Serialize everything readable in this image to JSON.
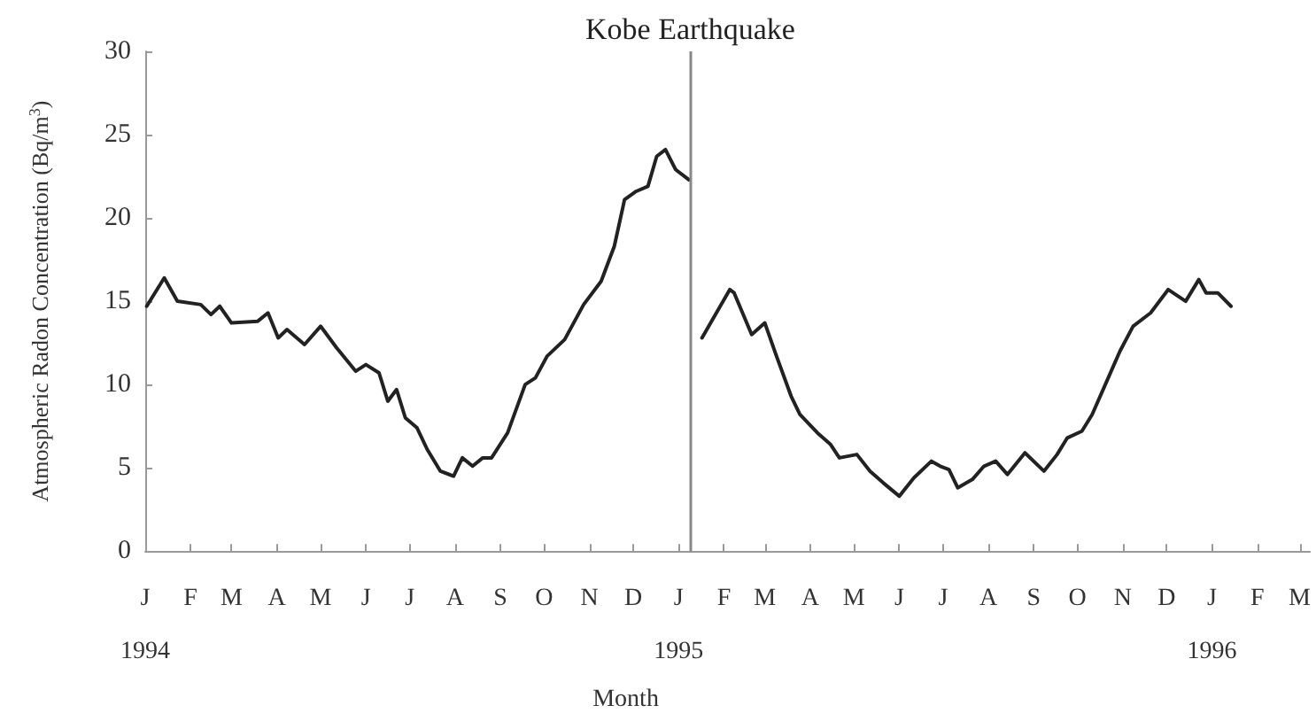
{
  "chart_data": {
    "type": "line",
    "ylabel": "Atmospheric Radon Concentration (Bq/m$^{3}$)",
    "xlabel": "Month",
    "xlim": [
      "1994-01-01",
      "1996-03-08"
    ],
    "xticks": [
      {
        "value": "1994-01-01",
        "label": "J\n1994"
      },
      {
        "value": "1994-02-01",
        "label": "F"
      },
      {
        "value": "1994-03-01",
        "label": "M"
      },
      {
        "value": "1994-04-01",
        "label": "A"
      },
      {
        "value": "1994-05-01",
        "label": "M"
      },
      {
        "value": "1994-06-01",
        "label": "J"
      },
      {
        "value": "1994-07-01",
        "label": "J"
      },
      {
        "value": "1994-08-01",
        "label": "A"
      },
      {
        "value": "1994-09-01",
        "label": "S"
      },
      {
        "value": "1994-10-01",
        "label": "O"
      },
      {
        "value": "1994-11-01",
        "label": "N"
      },
      {
        "value": "1994-12-01",
        "label": "D"
      },
      {
        "value": "1995-01-01",
        "label": "J\n1995"
      },
      {
        "value": "1995-02-01",
        "label": "F"
      },
      {
        "value": "1995-03-01",
        "label": "M"
      },
      {
        "value": "1995-04-01",
        "label": "A"
      },
      {
        "value": "1995-05-01",
        "label": "M"
      },
      {
        "value": "1995-06-01",
        "label": "J"
      },
      {
        "value": "1995-07-01",
        "label": "J"
      },
      {
        "value": "1995-08-01",
        "label": "A"
      },
      {
        "value": "1995-09-01",
        "label": "S"
      },
      {
        "value": "1995-10-01",
        "label": "O"
      },
      {
        "value": "1995-11-01",
        "label": "N"
      },
      {
        "value": "1995-12-01",
        "label": "D"
      },
      {
        "value": "1996-01-01",
        "label": "J\n1996"
      },
      {
        "value": "1996-02-01",
        "label": "F"
      },
      {
        "value": "1996-03-01",
        "label": "M"
      }
    ],
    "ylim": [
      0,
      30
    ],
    "yticks": [
      0,
      5,
      10,
      15,
      20,
      25,
      30
    ],
    "grid": false,
    "marker": "none",
    "line_style": "solid",
    "ref_lines": [
      {
        "axis": "x",
        "value": "1995-01-09",
        "label": "Kobe Earthquake",
        "color": "#888888"
      }
    ],
    "series": [
      {
        "color": "#222222",
        "x": [
          "1994-01-02",
          "1994-01-14",
          "1994-01-23",
          "1994-02-08",
          "1994-02-15",
          "1994-02-21",
          "1994-03-01",
          "1994-03-19",
          "1994-03-26",
          "1994-04-02",
          "1994-04-08",
          "1994-04-20",
          "1994-05-01",
          "1994-05-12",
          "1994-05-25",
          "1994-06-01",
          "1994-06-10",
          "1994-06-16",
          "1994-06-22",
          "1994-06-28",
          "1994-07-06",
          "1994-07-13",
          "1994-07-22",
          "1994-07-31",
          "1994-08-06",
          "1994-08-13",
          "1994-08-20",
          "1994-08-26",
          "1994-09-06",
          "1994-09-18",
          "1994-09-25",
          "1994-10-03",
          "1994-10-15",
          "1994-10-28",
          "1994-11-09",
          "1994-11-18",
          "1994-11-25",
          "1994-12-03",
          "1994-12-11",
          "1994-12-17",
          "1994-12-23",
          "1994-12-30",
          "1995-01-08"
        ],
        "values": [
          14.7,
          16.4,
          15.0,
          14.8,
          14.2,
          14.7,
          13.7,
          13.8,
          14.3,
          12.8,
          13.3,
          12.4,
          13.5,
          12.2,
          10.8,
          11.2,
          10.7,
          9.0,
          9.7,
          8.0,
          7.4,
          6.1,
          4.8,
          4.5,
          5.6,
          5.1,
          5.6,
          5.6,
          7.1,
          10.0,
          10.4,
          11.7,
          12.7,
          14.8,
          16.2,
          18.3,
          21.1,
          21.6,
          21.9,
          23.7,
          24.1,
          22.9,
          22.3
        ]
      },
      {
        "color": "#222222",
        "x": [
          "1995-01-17",
          "1995-02-05",
          "1995-02-08",
          "1995-02-20",
          "1995-03-01",
          "1995-03-09",
          "1995-03-19",
          "1995-03-25",
          "1995-04-06",
          "1995-04-15",
          "1995-04-21",
          "1995-05-03",
          "1995-05-12",
          "1995-05-21",
          "1995-06-01",
          "1995-06-11",
          "1995-06-23",
          "1995-06-29",
          "1995-07-05",
          "1995-07-11",
          "1995-07-21",
          "1995-07-29",
          "1995-08-06",
          "1995-08-14",
          "1995-08-26",
          "1995-09-08",
          "1995-09-17",
          "1995-09-24",
          "1995-10-04",
          "1995-10-11",
          "1995-10-22",
          "1995-10-30",
          "1995-11-08",
          "1995-11-20",
          "1995-12-02",
          "1995-12-14",
          "1995-12-23",
          "1995-12-28",
          "1996-01-05",
          "1996-01-14"
        ],
        "values": [
          12.8,
          15.7,
          15.5,
          13.0,
          13.7,
          11.7,
          9.3,
          8.2,
          7.1,
          6.4,
          5.6,
          5.8,
          4.8,
          4.1,
          3.3,
          4.4,
          5.4,
          5.1,
          4.9,
          3.8,
          4.3,
          5.1,
          5.4,
          4.6,
          5.9,
          4.8,
          5.8,
          6.8,
          7.2,
          8.2,
          10.4,
          12.0,
          13.5,
          14.3,
          15.7,
          15.0,
          16.3,
          15.5,
          15.5,
          14.7
        ]
      }
    ]
  }
}
